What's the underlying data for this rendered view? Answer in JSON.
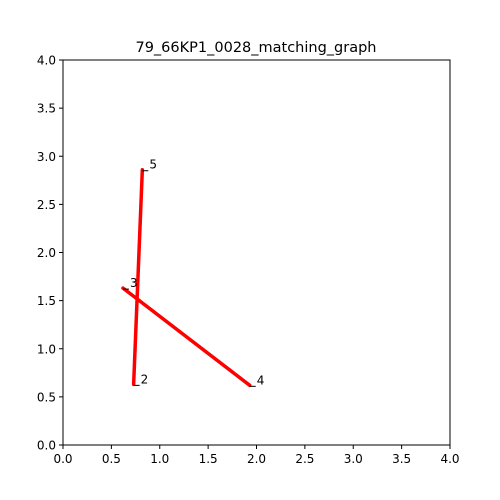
{
  "chart_data": {
    "type": "line",
    "title": "79_66KP1_0028_matching_graph",
    "xlabel": "",
    "ylabel": "",
    "xlim": [
      0.0,
      4.0
    ],
    "ylim": [
      0.0,
      4.0
    ],
    "x_ticks": [
      "0.0",
      "0.5",
      "1.0",
      "1.5",
      "2.0",
      "2.5",
      "3.0",
      "3.5",
      "4.0"
    ],
    "y_ticks": [
      "0.0",
      "0.5",
      "1.0",
      "1.5",
      "2.0",
      "2.5",
      "3.0",
      "3.5",
      "4.0"
    ],
    "grid": false,
    "edge_color": "#ff0000",
    "nodes": [
      {
        "id": "2",
        "x": 0.73,
        "y": 0.63
      },
      {
        "id": "3",
        "x": 0.62,
        "y": 1.63
      },
      {
        "id": "4",
        "x": 1.93,
        "y": 0.62
      },
      {
        "id": "5",
        "x": 0.82,
        "y": 2.86
      }
    ],
    "edges": [
      {
        "from": "2",
        "to": "5"
      },
      {
        "from": "3",
        "to": "4"
      }
    ]
  }
}
